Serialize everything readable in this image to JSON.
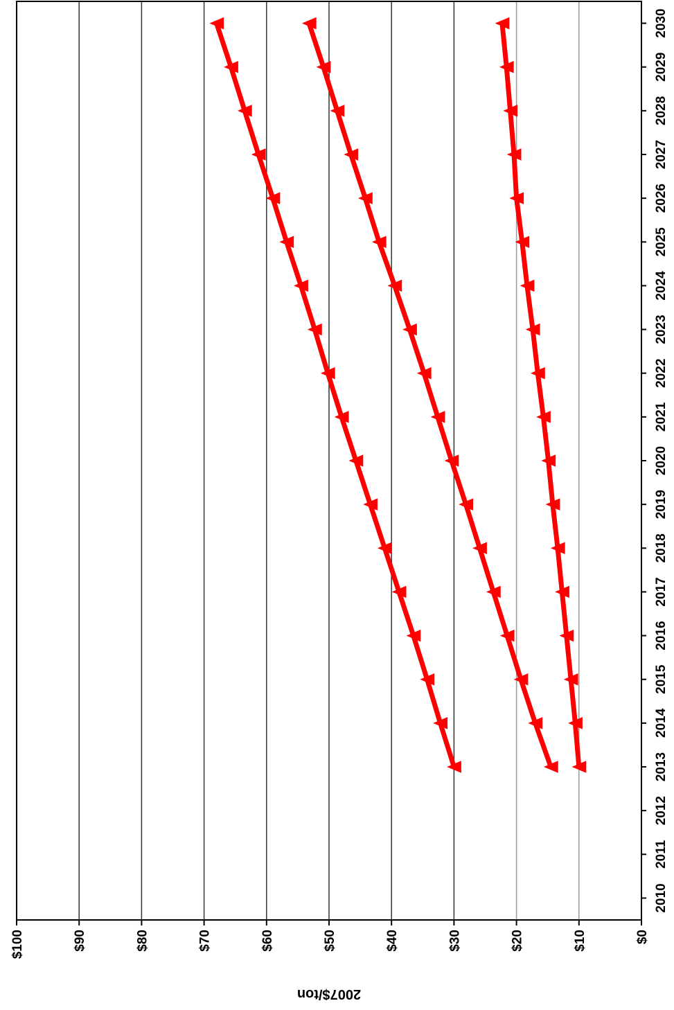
{
  "chart_data": {
    "type": "line",
    "title": "",
    "ylabel": "2007$/ton",
    "xlabel": "",
    "orientation": "rotated-90",
    "x": [
      2010,
      2011,
      2012,
      2013,
      2014,
      2015,
      2016,
      2017,
      2018,
      2019,
      2020,
      2021,
      2022,
      2023,
      2024,
      2025,
      2026,
      2027,
      2028,
      2029,
      2030
    ],
    "xlim": [
      2009.5,
      2030.5
    ],
    "ylim": [
      0,
      100
    ],
    "y_ticks": [
      0,
      10,
      20,
      30,
      40,
      50,
      60,
      70,
      80,
      90,
      100
    ],
    "y_tick_labels": [
      "$0",
      "$10",
      "$20",
      "$30",
      "$40",
      "$50",
      "$60",
      "$70",
      "$80",
      "$90",
      "$100"
    ],
    "grid": true,
    "legend": "none",
    "line_color": "#ff0000",
    "marker": "triangle",
    "series": [
      {
        "x": [
          2013,
          2014,
          2015,
          2016,
          2017,
          2018,
          2019,
          2020,
          2021,
          2022,
          2023,
          2024,
          2025,
          2026,
          2027,
          2028,
          2029,
          2030
        ],
        "values": [
          30.0,
          32.2,
          34.3,
          36.5,
          38.8,
          41.1,
          43.4,
          45.7,
          48.0,
          50.2,
          52.3,
          54.5,
          56.8,
          59.0,
          61.3,
          63.5,
          65.7,
          68.0
        ]
      },
      {
        "x": [
          2013,
          2014,
          2015,
          2016,
          2017,
          2018,
          2019,
          2020,
          2021,
          2022,
          2023,
          2024,
          2025,
          2026,
          2027,
          2028,
          2029,
          2030
        ],
        "values": [
          14.5,
          17.0,
          19.3,
          21.5,
          23.7,
          25.9,
          28.1,
          30.4,
          32.6,
          34.8,
          37.1,
          39.5,
          42.0,
          44.2,
          46.5,
          48.7,
          50.9,
          53.2
        ]
      },
      {
        "x": [
          2013,
          2014,
          2015,
          2016,
          2017,
          2018,
          2019,
          2020,
          2021,
          2022,
          2023,
          2024,
          2025,
          2026,
          2027,
          2028,
          2029,
          2030
        ],
        "values": [
          10.0,
          10.6,
          11.3,
          12.0,
          12.7,
          13.4,
          14.2,
          14.9,
          15.7,
          16.6,
          17.4,
          18.3,
          19.1,
          20.0,
          20.4,
          21.0,
          21.6,
          22.3
        ]
      }
    ]
  }
}
